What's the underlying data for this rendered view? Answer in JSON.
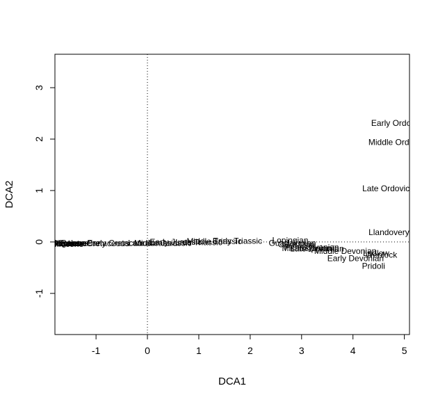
{
  "chart_data": {
    "type": "scatter",
    "title": "",
    "xlabel": "DCA1",
    "ylabel": "DCA2",
    "xlim": [
      -1.8,
      5.1
    ],
    "ylim": [
      -1.8,
      3.65
    ],
    "x_ticks": [
      -1,
      0,
      1,
      2,
      3,
      4,
      5
    ],
    "y_ticks": [
      -1,
      0,
      1,
      2,
      3
    ],
    "reference_lines": {
      "x": 0,
      "y": 0,
      "style": "dotted"
    },
    "grid": false,
    "points": [
      {
        "label": "Early Ordovician",
        "x": 4.95,
        "y": 2.31
      },
      {
        "label": "Middle Ordovician",
        "x": 4.95,
        "y": 1.94
      },
      {
        "label": "Late Ordovician",
        "x": 4.75,
        "y": 1.04
      },
      {
        "label": "Llandovery",
        "x": 4.7,
        "y": 0.19
      },
      {
        "label": "Wenlock",
        "x": 4.55,
        "y": -0.25
      },
      {
        "label": "Ludlow",
        "x": 4.45,
        "y": -0.22
      },
      {
        "label": "Pridoli",
        "x": 4.4,
        "y": -0.47
      },
      {
        "label": "Early Devonian",
        "x": 4.05,
        "y": -0.32
      },
      {
        "label": "Middle Devonian",
        "x": 3.85,
        "y": -0.18
      },
      {
        "label": "Late Devonian",
        "x": 3.3,
        "y": -0.13
      },
      {
        "label": "Mississippian",
        "x": 3.1,
        "y": -0.12
      },
      {
        "label": "Pennsylvanian",
        "x": 3.2,
        "y": -0.1
      },
      {
        "label": "Cisuralian",
        "x": 2.9,
        "y": -0.05
      },
      {
        "label": "Guadalupian",
        "x": 2.82,
        "y": -0.02
      },
      {
        "label": "Lopingian",
        "x": 2.78,
        "y": 0.03
      },
      {
        "label": "Early Triassic",
        "x": 1.75,
        "y": 0.02
      },
      {
        "label": "Middle Triassic",
        "x": 1.3,
        "y": 0.01
      },
      {
        "label": "Late Triassic",
        "x": 1.0,
        "y": -0.01
      },
      {
        "label": "Early Jurassic",
        "x": 0.55,
        "y": 0.0
      },
      {
        "label": "Middle Jurassic",
        "x": 0.3,
        "y": -0.02
      },
      {
        "label": "Late Jurassic",
        "x": 0.1,
        "y": -0.02
      },
      {
        "label": "Early Cretaceous",
        "x": -0.55,
        "y": -0.02
      },
      {
        "label": "Late Cretaceous",
        "x": -0.95,
        "y": -0.03
      },
      {
        "label": "Paleocene",
        "x": -1.3,
        "y": -0.02
      },
      {
        "label": "Eocene",
        "x": -1.45,
        "y": -0.03
      },
      {
        "label": "Oligocene",
        "x": -1.5,
        "y": -0.02
      },
      {
        "label": "Miocene",
        "x": -1.55,
        "y": -0.04
      },
      {
        "label": "Pliocene",
        "x": -1.6,
        "y": -0.03
      },
      {
        "label": "Pleistocene",
        "x": -1.62,
        "y": -0.02
      },
      {
        "label": "Holocene",
        "x": -1.66,
        "y": -0.03
      }
    ]
  }
}
